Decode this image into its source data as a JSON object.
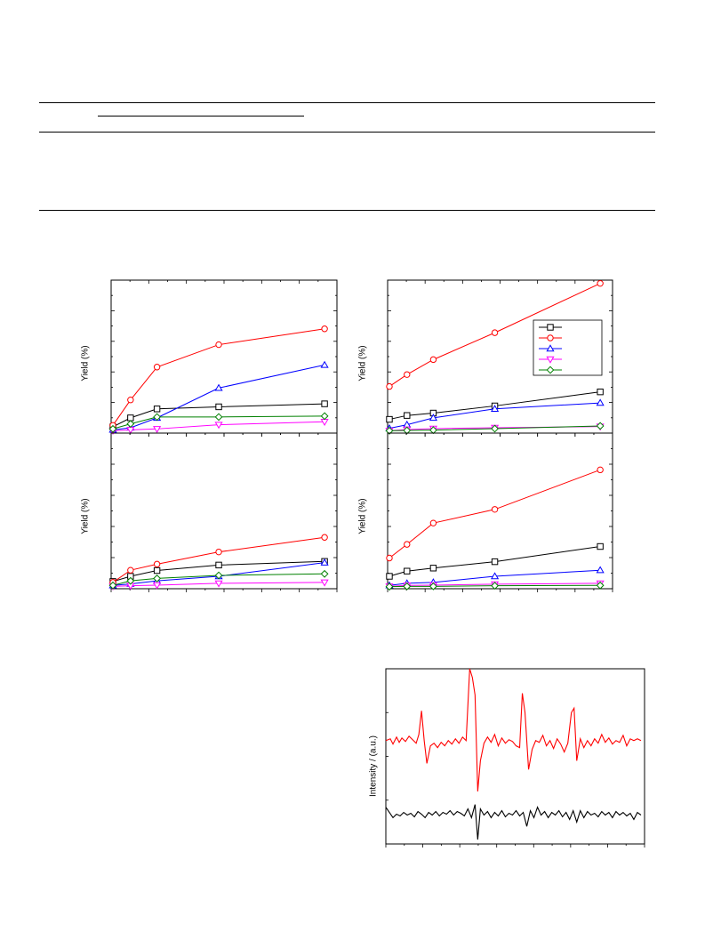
{
  "table": {
    "note": "Table region: horizontal rules visible, cell text not legible in the screenshot"
  },
  "yield_panels": {
    "ylabel": "Yield (%)",
    "legend_colors": [
      "#000000",
      "#ff0000",
      "#0000ff",
      "#ff00ff",
      "#008000"
    ],
    "legend_markers": [
      "square-icon",
      "circle-icon",
      "triangle-up-icon",
      "triangle-down-icon",
      "diamond-icon"
    ]
  },
  "epr": {
    "ylabel": "Intensity / (a.u.)"
  },
  "chart_data": [
    {
      "type": "line",
      "x": [
        0,
        0.5,
        1.25,
        3,
        6
      ],
      "xlim": [
        0,
        6.3
      ],
      "ylim": [
        0,
        50
      ],
      "series": [
        {
          "color": "#000000",
          "marker": "square",
          "values": [
            1.5,
            4.5,
            7.5,
            8.2,
            9.2
          ]
        },
        {
          "color": "#ff0000",
          "marker": "circle",
          "values": [
            2.0,
            10.5,
            21.5,
            29.0,
            34.3
          ]
        },
        {
          "color": "#0000ff",
          "marker": "triangle-up",
          "values": [
            0.5,
            1.2,
            4.5,
            14.5,
            22.2
          ]
        },
        {
          "color": "#ff00ff",
          "marker": "triangle-down",
          "values": [
            0.2,
            0.5,
            0.8,
            2.2,
            3.2
          ]
        },
        {
          "color": "#008000",
          "marker": "diamond",
          "values": [
            0.8,
            2.5,
            4.8,
            4.8,
            5.1
          ]
        }
      ]
    },
    {
      "type": "line",
      "x": [
        0,
        0.5,
        1.25,
        3,
        6
      ],
      "xlim": [
        0,
        6.3
      ],
      "ylim": [
        0,
        50
      ],
      "legend": "top-right",
      "series": [
        {
          "color": "#000000",
          "marker": "square",
          "values": [
            4.0,
            5.3,
            6.1,
            8.5,
            13.2
          ]
        },
        {
          "color": "#ff0000",
          "marker": "circle",
          "values": [
            15.0,
            19.0,
            24.0,
            33.0,
            49.5
          ]
        },
        {
          "color": "#0000ff",
          "marker": "triangle-up",
          "values": [
            1.0,
            2.2,
            4.5,
            7.5,
            9.5
          ]
        },
        {
          "color": "#ff00ff",
          "marker": "triangle-down",
          "values": [
            0.2,
            0.6,
            0.9,
            1.2,
            1.6
          ]
        },
        {
          "color": "#008000",
          "marker": "diamond",
          "values": [
            0.2,
            0.3,
            0.4,
            0.9,
            1.8
          ]
        }
      ]
    },
    {
      "type": "line",
      "x": [
        0,
        0.5,
        1.25,
        3,
        6
      ],
      "xlim": [
        0,
        6.3
      ],
      "ylim": [
        0,
        50
      ],
      "series": [
        {
          "color": "#000000",
          "marker": "square",
          "values": [
            1.8,
            3.5,
            5.4,
            7.2,
            8.4
          ]
        },
        {
          "color": "#ff0000",
          "marker": "circle",
          "values": [
            1.5,
            5.5,
            7.5,
            11.5,
            16.3
          ]
        },
        {
          "color": "#0000ff",
          "marker": "triangle-up",
          "values": [
            0.5,
            1.0,
            2.0,
            3.5,
            8.0
          ]
        },
        {
          "color": "#ff00ff",
          "marker": "triangle-down",
          "values": [
            0.2,
            0.4,
            0.6,
            1.2,
            1.5
          ]
        },
        {
          "color": "#008000",
          "marker": "diamond",
          "values": [
            0.5,
            2.0,
            2.8,
            3.8,
            4.3
          ]
        }
      ]
    },
    {
      "type": "line",
      "x": [
        0,
        0.5,
        1.25,
        3,
        6
      ],
      "xlim": [
        0,
        6.3
      ],
      "ylim": [
        0,
        50
      ],
      "series": [
        {
          "color": "#000000",
          "marker": "square",
          "values": [
            3.5,
            5.2,
            6.2,
            8.3,
            13.3
          ]
        },
        {
          "color": "#ff0000",
          "marker": "circle",
          "values": [
            9.5,
            14.0,
            21.0,
            25.5,
            38.5
          ]
        },
        {
          "color": "#0000ff",
          "marker": "triangle-up",
          "values": [
            0.5,
            1.2,
            1.5,
            3.5,
            5.5
          ]
        },
        {
          "color": "#ff00ff",
          "marker": "triangle-down",
          "values": [
            0.2,
            0.5,
            0.6,
            0.9,
            1.2
          ]
        },
        {
          "color": "#008000",
          "marker": "diamond",
          "values": [
            0.1,
            0.2,
            0.2,
            0.4,
            0.5
          ]
        }
      ]
    },
    {
      "type": "line",
      "xlim": [
        0,
        290
      ],
      "ylim": [
        0,
        200
      ],
      "series": [
        {
          "color": "#ff0000",
          "points": [
            [
              0,
              118
            ],
            [
              5,
              120
            ],
            [
              8,
              114
            ],
            [
              12,
              122
            ],
            [
              15,
              116
            ],
            [
              18,
              121
            ],
            [
              22,
              117
            ],
            [
              26,
              123
            ],
            [
              30,
              119
            ],
            [
              34,
              115
            ],
            [
              37,
              125
            ],
            [
              40,
              152
            ],
            [
              43,
              118
            ],
            [
              46,
              92
            ],
            [
              50,
              112
            ],
            [
              54,
              115
            ],
            [
              58,
              110
            ],
            [
              62,
              116
            ],
            [
              66,
              112
            ],
            [
              70,
              118
            ],
            [
              74,
              114
            ],
            [
              78,
              120
            ],
            [
              82,
              115
            ],
            [
              86,
              122
            ],
            [
              90,
              118
            ],
            [
              94,
              200
            ],
            [
              97,
              190
            ],
            [
              100,
              170
            ],
            [
              103,
              60
            ],
            [
              106,
              95
            ],
            [
              110,
              115
            ],
            [
              114,
              122
            ],
            [
              118,
              116
            ],
            [
              122,
              125
            ],
            [
              126,
              112
            ],
            [
              130,
              121
            ],
            [
              134,
              115
            ],
            [
              138,
              119
            ],
            [
              142,
              117
            ],
            [
              146,
              112
            ],
            [
              150,
              110
            ],
            [
              153,
              172
            ],
            [
              156,
              150
            ],
            [
              160,
              85
            ],
            [
              164,
              108
            ],
            [
              168,
              118
            ],
            [
              172,
              116
            ],
            [
              176,
              124
            ],
            [
              180,
              112
            ],
            [
              184,
              118
            ],
            [
              188,
              109
            ],
            [
              192,
              120
            ],
            [
              196,
              114
            ],
            [
              200,
              105
            ],
            [
              204,
              115
            ],
            [
              208,
              150
            ],
            [
              211,
              155
            ],
            [
              214,
              95
            ],
            [
              218,
              120
            ],
            [
              222,
              110
            ],
            [
              226,
              118
            ],
            [
              230,
              112
            ],
            [
              234,
              120
            ],
            [
              238,
              115
            ],
            [
              242,
              125
            ],
            [
              246,
              116
            ],
            [
              250,
              121
            ],
            [
              254,
              114
            ],
            [
              258,
              118
            ],
            [
              262,
              116
            ],
            [
              266,
              124
            ],
            [
              270,
              112
            ],
            [
              274,
              120
            ],
            [
              278,
              118
            ],
            [
              282,
              120
            ],
            [
              286,
              118
            ]
          ]
        },
        {
          "color": "#000000",
          "points": [
            [
              0,
              42
            ],
            [
              4,
              36
            ],
            [
              8,
              30
            ],
            [
              12,
              34
            ],
            [
              16,
              32
            ],
            [
              20,
              36
            ],
            [
              24,
              33
            ],
            [
              28,
              35
            ],
            [
              32,
              31
            ],
            [
              36,
              37
            ],
            [
              40,
              34
            ],
            [
              44,
              30
            ],
            [
              48,
              36
            ],
            [
              52,
              33
            ],
            [
              56,
              37
            ],
            [
              60,
              32
            ],
            [
              64,
              36
            ],
            [
              68,
              34
            ],
            [
              72,
              38
            ],
            [
              76,
              33
            ],
            [
              80,
              37
            ],
            [
              84,
              35
            ],
            [
              88,
              32
            ],
            [
              92,
              40
            ],
            [
              96,
              30
            ],
            [
              100,
              45
            ],
            [
              103,
              5
            ],
            [
              106,
              40
            ],
            [
              110,
              33
            ],
            [
              114,
              37
            ],
            [
              118,
              30
            ],
            [
              122,
              36
            ],
            [
              126,
              32
            ],
            [
              130,
              38
            ],
            [
              134,
              31
            ],
            [
              138,
              35
            ],
            [
              142,
              33
            ],
            [
              146,
              38
            ],
            [
              150,
              32
            ],
            [
              154,
              36
            ],
            [
              158,
              20
            ],
            [
              162,
              38
            ],
            [
              166,
              30
            ],
            [
              170,
              42
            ],
            [
              174,
              33
            ],
            [
              178,
              37
            ],
            [
              182,
              30
            ],
            [
              186,
              36
            ],
            [
              190,
              33
            ],
            [
              194,
              38
            ],
            [
              198,
              31
            ],
            [
              202,
              36
            ],
            [
              206,
              28
            ],
            [
              210,
              38
            ],
            [
              214,
              25
            ],
            [
              218,
              38
            ],
            [
              222,
              30
            ],
            [
              226,
              37
            ],
            [
              230,
              33
            ],
            [
              234,
              35
            ],
            [
              238,
              31
            ],
            [
              242,
              37
            ],
            [
              246,
              33
            ],
            [
              250,
              36
            ],
            [
              254,
              30
            ],
            [
              258,
              37
            ],
            [
              262,
              33
            ],
            [
              266,
              36
            ],
            [
              270,
              32
            ],
            [
              274,
              35
            ],
            [
              278,
              28
            ],
            [
              282,
              36
            ],
            [
              286,
              33
            ]
          ]
        }
      ]
    }
  ]
}
